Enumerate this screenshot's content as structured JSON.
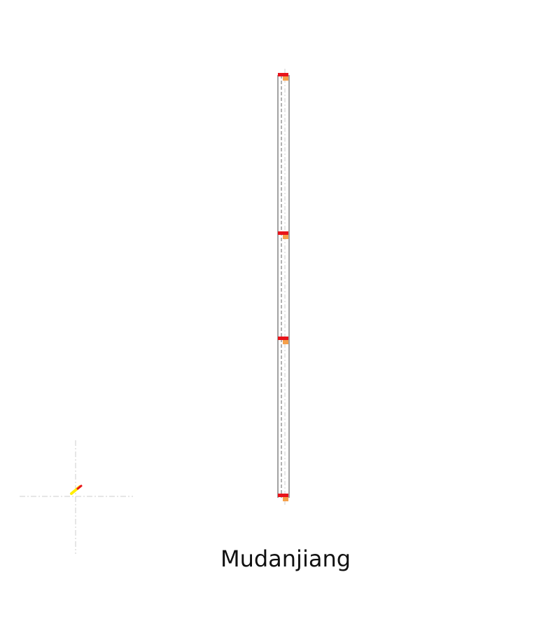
{
  "station": {
    "name": "Mudanjiang"
  },
  "colors": {
    "platform_outline": "#555555",
    "track_outer": "#333333",
    "track_inner_dash": "#bbbbbb",
    "axis_dash": "#cccccc",
    "marker_red": "#e8141b",
    "marker_orange": "#f5a04a",
    "pointer_yellow": "#ffee00",
    "pointer_red": "#e8141b"
  },
  "diagram": {
    "markers": [
      {
        "name": "marker-top"
      },
      {
        "name": "marker-upper-middle"
      },
      {
        "name": "marker-lower-middle"
      },
      {
        "name": "marker-bottom"
      }
    ],
    "compass_icon": "compass-pointer-icon"
  }
}
